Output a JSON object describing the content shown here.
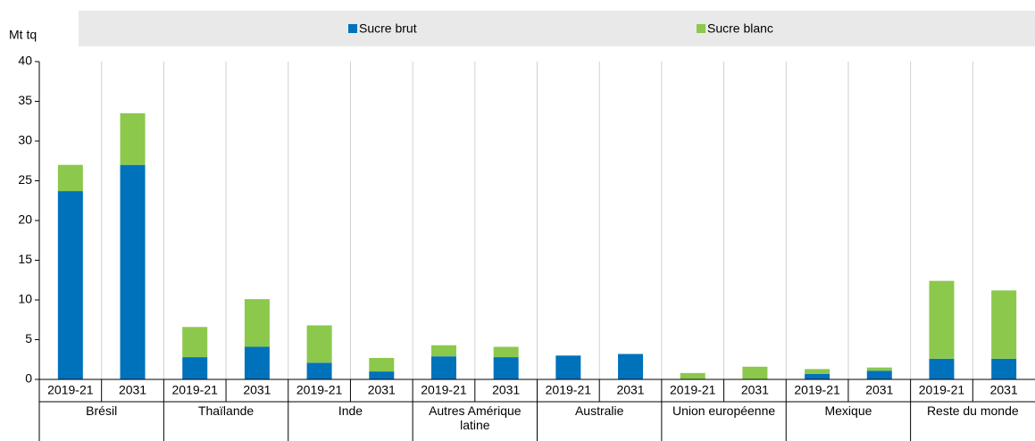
{
  "chart_data": {
    "type": "stacked_bar",
    "y_axis_label": "Mt tq",
    "categories": [
      "2019-21",
      "2031",
      "2019-21",
      "2031",
      "2019-21",
      "2031",
      "2019-21",
      "2031",
      "2019-21",
      "2031",
      "2019-21",
      "2031",
      "2019-21",
      "2031",
      "2019-21",
      "2031"
    ],
    "groups": [
      "Brésil",
      "Thaïlande",
      "Inde",
      "Autres Amérique latine",
      "Australie",
      "Union européenne",
      "Mexique",
      "Reste du monde"
    ],
    "series": [
      {
        "name": "Sucre brut",
        "color": "#0072bc",
        "values": [
          23.7,
          27.0,
          2.8,
          4.1,
          2.1,
          1.0,
          2.9,
          2.8,
          3.0,
          3.2,
          0,
          0,
          0.7,
          1.1,
          2.6,
          2.6
        ]
      },
      {
        "name": "Sucre blanc",
        "color": "#8cc84b",
        "values": [
          3.3,
          6.5,
          3.8,
          6.0,
          4.7,
          1.7,
          1.4,
          1.3,
          0,
          0,
          0.8,
          1.6,
          0.6,
          0.4,
          9.8,
          8.6
        ]
      }
    ],
    "ylim": [
      0,
      40
    ],
    "yticks": [
      0,
      5,
      10,
      15,
      20,
      25,
      30,
      35,
      40
    ],
    "grid": "vertical"
  }
}
